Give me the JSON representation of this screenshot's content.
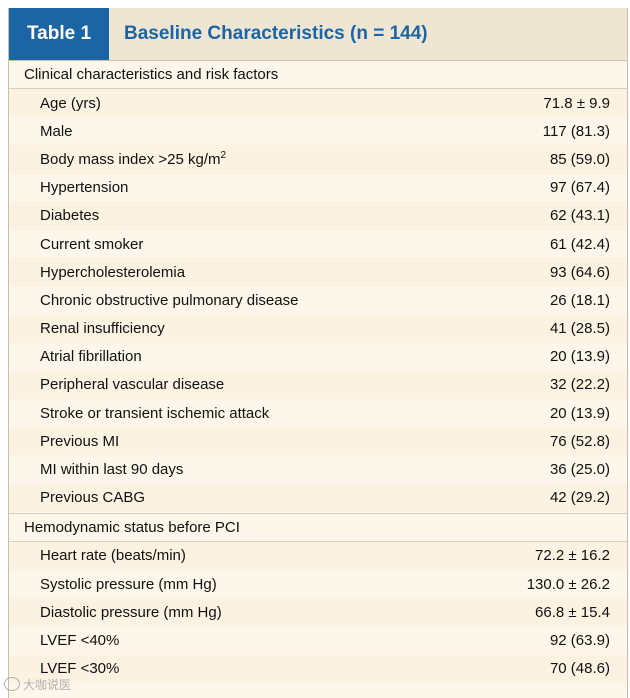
{
  "table": {
    "label": "Table 1",
    "title": "Baseline Characteristics (n = 144)"
  },
  "sections": [
    {
      "heading": "Clinical characteristics and risk factors",
      "rows": [
        {
          "label": "Age (yrs)",
          "value": "71.8 ± 9.9"
        },
        {
          "label": "Male",
          "value": "117 (81.3)"
        },
        {
          "label": "Body mass index >25 kg/m",
          "label_sup": "2",
          "value": "85 (59.0)"
        },
        {
          "label": "Hypertension",
          "value": "97 (67.4)"
        },
        {
          "label": "Diabetes",
          "value": "62 (43.1)"
        },
        {
          "label": "Current smoker",
          "value": "61 (42.4)"
        },
        {
          "label": "Hypercholesterolemia",
          "value": "93 (64.6)"
        },
        {
          "label": "Chronic obstructive pulmonary disease",
          "value": "26 (18.1)"
        },
        {
          "label": "Renal insufficiency",
          "value": "41 (28.5)"
        },
        {
          "label": "Atrial fibrillation",
          "value": "20 (13.9)"
        },
        {
          "label": "Peripheral vascular disease",
          "value": "32 (22.2)"
        },
        {
          "label": "Stroke or transient ischemic attack",
          "value": "20 (13.9)"
        },
        {
          "label": "Previous MI",
          "value": "76 (52.8)"
        },
        {
          "label": "MI within last 90 days",
          "value": "36 (25.0)"
        },
        {
          "label": "Previous CABG",
          "value": "42 (29.2)"
        }
      ]
    },
    {
      "heading": "Hemodynamic status before PCI",
      "rows": [
        {
          "label": "Heart rate (beats/min)",
          "value": "72.2 ± 16.2"
        },
        {
          "label": "Systolic pressure (mm Hg)",
          "value": "130.0 ± 26.2"
        },
        {
          "label": "Diastolic pressure (mm Hg)",
          "value": "66.8 ± 15.4"
        },
        {
          "label": "LVEF <40%",
          "value": "92 (63.9)"
        },
        {
          "label": "LVEF <30%",
          "value": "70 (48.6)"
        }
      ]
    }
  ],
  "watermark": {
    "text": "大咖说医"
  }
}
